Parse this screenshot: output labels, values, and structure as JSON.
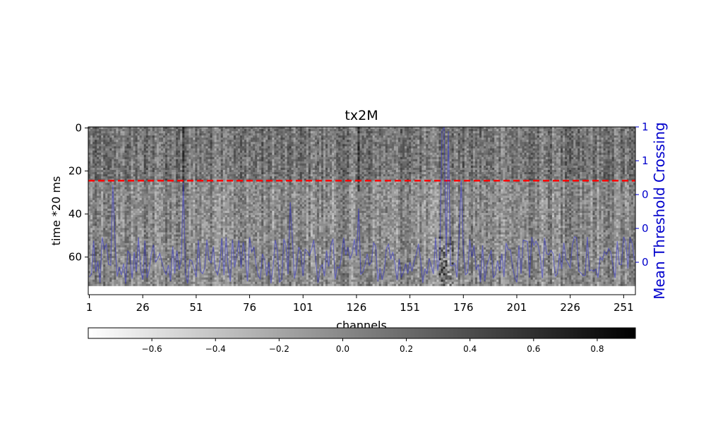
{
  "chart_data": {
    "type": "heatmap",
    "title": "tx2M",
    "xlabel": "channels",
    "ylabel": "time *20 ms",
    "y2label": "Mean Threshold Crossing",
    "x_ticks": [
      "1",
      "26",
      "51",
      "76",
      "101",
      "126",
      "151",
      "176",
      "201",
      "226",
      "251"
    ],
    "y_ticks": [
      "0",
      "20",
      "40",
      "60"
    ],
    "y2_ticks": [
      "1",
      "1",
      "0",
      "0",
      "0"
    ],
    "colorbar_ticks": [
      "−0.6",
      "−0.4",
      "−0.2",
      "0.0",
      "0.2",
      "0.4",
      "0.6",
      "0.8"
    ],
    "colorbar_range": [
      -0.8,
      0.92
    ],
    "colormap": "gray_r",
    "x_range": [
      0,
      256
    ],
    "y_range": [
      0,
      78
    ],
    "grid": false,
    "reference_line": {
      "y": 25,
      "color": "#ff0000",
      "style": "dashed"
    },
    "mean_line_color": "#3333cc",
    "axis2_color": "#0000cc"
  }
}
